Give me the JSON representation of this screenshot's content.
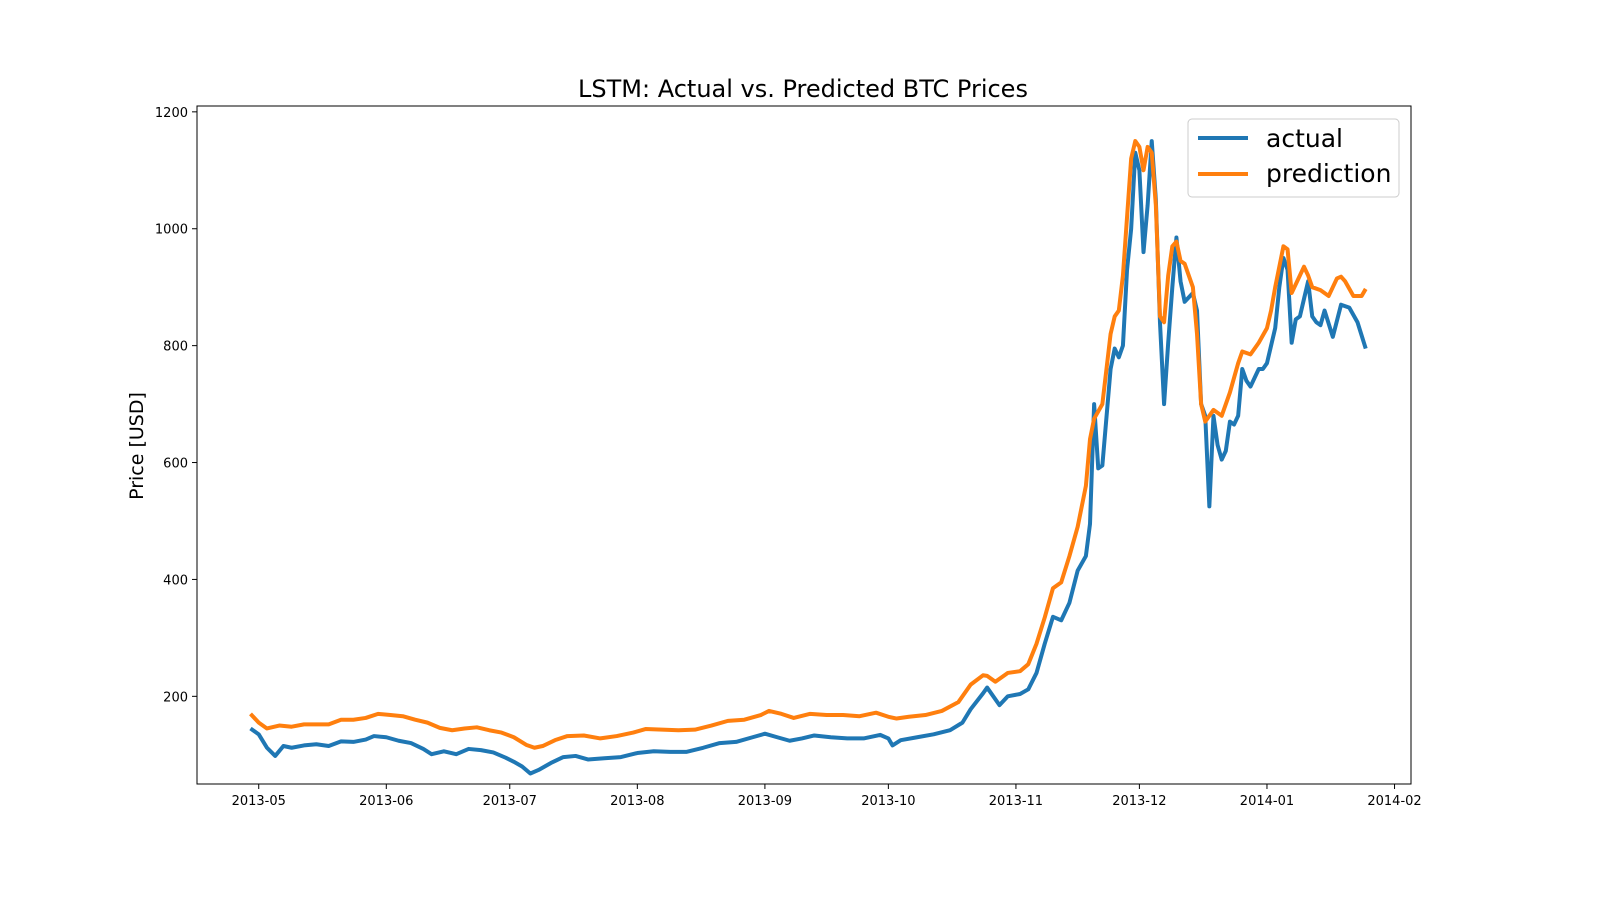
{
  "chart_data": {
    "type": "line",
    "title": "LSTM: Actual vs. Predicted BTC Prices",
    "xlabel": "",
    "ylabel": "Price [USD]",
    "ylim": [
      50,
      1210
    ],
    "xlim": [
      "2013-04-16",
      "2014-02-05"
    ],
    "x_tick_labels": [
      "2013-05",
      "2013-06",
      "2013-07",
      "2013-08",
      "2013-09",
      "2013-10",
      "2013-11",
      "2013-12",
      "2014-01",
      "2014-02"
    ],
    "y_tick_labels": [
      "200",
      "400",
      "600",
      "800",
      "1000",
      "1200"
    ],
    "grid": false,
    "legend_position": "top-right",
    "series": [
      {
        "name": "actual",
        "color": "#1f77b4",
        "points": [
          [
            "2013-04-29",
            145
          ],
          [
            "2013-05-01",
            135
          ],
          [
            "2013-05-03",
            112
          ],
          [
            "2013-05-05",
            98
          ],
          [
            "2013-05-07",
            115
          ],
          [
            "2013-05-09",
            112
          ],
          [
            "2013-05-12",
            116
          ],
          [
            "2013-05-15",
            118
          ],
          [
            "2013-05-18",
            115
          ],
          [
            "2013-05-21",
            123
          ],
          [
            "2013-05-24",
            122
          ],
          [
            "2013-05-27",
            126
          ],
          [
            "2013-05-29",
            132
          ],
          [
            "2013-06-01",
            130
          ],
          [
            "2013-06-04",
            124
          ],
          [
            "2013-06-07",
            120
          ],
          [
            "2013-06-10",
            110
          ],
          [
            "2013-06-12",
            101
          ],
          [
            "2013-06-15",
            106
          ],
          [
            "2013-06-18",
            101
          ],
          [
            "2013-06-21",
            110
          ],
          [
            "2013-06-24",
            108
          ],
          [
            "2013-06-27",
            104
          ],
          [
            "2013-06-30",
            95
          ],
          [
            "2013-07-02",
            88
          ],
          [
            "2013-07-04",
            80
          ],
          [
            "2013-07-06",
            68
          ],
          [
            "2013-07-08",
            74
          ],
          [
            "2013-07-11",
            86
          ],
          [
            "2013-07-14",
            96
          ],
          [
            "2013-07-17",
            98
          ],
          [
            "2013-07-20",
            92
          ],
          [
            "2013-07-24",
            94
          ],
          [
            "2013-07-28",
            96
          ],
          [
            "2013-08-01",
            103
          ],
          [
            "2013-08-05",
            106
          ],
          [
            "2013-08-09",
            105
          ],
          [
            "2013-08-13",
            105
          ],
          [
            "2013-08-17",
            112
          ],
          [
            "2013-08-21",
            120
          ],
          [
            "2013-08-25",
            122
          ],
          [
            "2013-08-29",
            130
          ],
          [
            "2013-09-01",
            136
          ],
          [
            "2013-09-04",
            130
          ],
          [
            "2013-09-07",
            124
          ],
          [
            "2013-09-10",
            128
          ],
          [
            "2013-09-13",
            133
          ],
          [
            "2013-09-17",
            130
          ],
          [
            "2013-09-21",
            128
          ],
          [
            "2013-09-25",
            128
          ],
          [
            "2013-09-29",
            134
          ],
          [
            "2013-10-01",
            128
          ],
          [
            "2013-10-02",
            116
          ],
          [
            "2013-10-04",
            125
          ],
          [
            "2013-10-08",
            130
          ],
          [
            "2013-10-12",
            135
          ],
          [
            "2013-10-16",
            142
          ],
          [
            "2013-10-19",
            155
          ],
          [
            "2013-10-21",
            178
          ],
          [
            "2013-10-24",
            205
          ],
          [
            "2013-10-25",
            215
          ],
          [
            "2013-10-28",
            185
          ],
          [
            "2013-10-30",
            200
          ],
          [
            "2013-11-02",
            204
          ],
          [
            "2013-11-04",
            212
          ],
          [
            "2013-11-06",
            240
          ],
          [
            "2013-11-08",
            290
          ],
          [
            "2013-11-10",
            336
          ],
          [
            "2013-11-12",
            330
          ],
          [
            "2013-11-14",
            360
          ],
          [
            "2013-11-16",
            415
          ],
          [
            "2013-11-18",
            440
          ],
          [
            "2013-11-19",
            495
          ],
          [
            "2013-11-20",
            700
          ],
          [
            "2013-11-21",
            590
          ],
          [
            "2013-11-22",
            595
          ],
          [
            "2013-11-24",
            760
          ],
          [
            "2013-11-25",
            795
          ],
          [
            "2013-11-26",
            780
          ],
          [
            "2013-11-27",
            800
          ],
          [
            "2013-11-28",
            930
          ],
          [
            "2013-11-29",
            1000
          ],
          [
            "2013-11-30",
            1130
          ],
          [
            "2013-12-01",
            1100
          ],
          [
            "2013-12-02",
            960
          ],
          [
            "2013-12-03",
            1040
          ],
          [
            "2013-12-04",
            1150
          ],
          [
            "2013-12-05",
            1050
          ],
          [
            "2013-12-06",
            840
          ],
          [
            "2013-12-07",
            700
          ],
          [
            "2013-12-08",
            805
          ],
          [
            "2013-12-09",
            900
          ],
          [
            "2013-12-10",
            985
          ],
          [
            "2013-12-11",
            910
          ],
          [
            "2013-12-12",
            875
          ],
          [
            "2013-12-14",
            890
          ],
          [
            "2013-12-15",
            860
          ],
          [
            "2013-12-16",
            700
          ],
          [
            "2013-12-17",
            680
          ],
          [
            "2013-12-18",
            525
          ],
          [
            "2013-12-19",
            680
          ],
          [
            "2013-12-20",
            630
          ],
          [
            "2013-12-21",
            605
          ],
          [
            "2013-12-22",
            620
          ],
          [
            "2013-12-23",
            670
          ],
          [
            "2013-12-24",
            665
          ],
          [
            "2013-12-25",
            680
          ],
          [
            "2013-12-26",
            760
          ],
          [
            "2013-12-27",
            740
          ],
          [
            "2013-12-28",
            730
          ],
          [
            "2013-12-29",
            745
          ],
          [
            "2013-12-30",
            760
          ],
          [
            "2013-12-31",
            760
          ],
          [
            "2014-01-01",
            770
          ],
          [
            "2014-01-02",
            800
          ],
          [
            "2014-01-03",
            830
          ],
          [
            "2014-01-04",
            900
          ],
          [
            "2014-01-05",
            950
          ],
          [
            "2014-01-06",
            930
          ],
          [
            "2014-01-07",
            805
          ],
          [
            "2014-01-08",
            845
          ],
          [
            "2014-01-09",
            850
          ],
          [
            "2014-01-10",
            880
          ],
          [
            "2014-01-11",
            910
          ],
          [
            "2014-01-12",
            850
          ],
          [
            "2014-01-13",
            840
          ],
          [
            "2014-01-14",
            835
          ],
          [
            "2014-01-15",
            860
          ],
          [
            "2014-01-17",
            815
          ],
          [
            "2014-01-19",
            870
          ],
          [
            "2014-01-21",
            865
          ],
          [
            "2014-01-23",
            840
          ],
          [
            "2014-01-25",
            795
          ]
        ]
      },
      {
        "name": "prediction",
        "color": "#ff7f0e",
        "points": [
          [
            "2013-04-29",
            170
          ],
          [
            "2013-05-01",
            155
          ],
          [
            "2013-05-03",
            145
          ],
          [
            "2013-05-06",
            150
          ],
          [
            "2013-05-09",
            148
          ],
          [
            "2013-05-12",
            152
          ],
          [
            "2013-05-15",
            152
          ],
          [
            "2013-05-18",
            152
          ],
          [
            "2013-05-21",
            160
          ],
          [
            "2013-05-24",
            160
          ],
          [
            "2013-05-27",
            163
          ],
          [
            "2013-05-30",
            170
          ],
          [
            "2013-06-02",
            168
          ],
          [
            "2013-06-05",
            166
          ],
          [
            "2013-06-08",
            160
          ],
          [
            "2013-06-11",
            155
          ],
          [
            "2013-06-14",
            146
          ],
          [
            "2013-06-17",
            142
          ],
          [
            "2013-06-20",
            145
          ],
          [
            "2013-06-23",
            147
          ],
          [
            "2013-06-26",
            142
          ],
          [
            "2013-06-29",
            138
          ],
          [
            "2013-07-02",
            130
          ],
          [
            "2013-07-05",
            117
          ],
          [
            "2013-07-07",
            112
          ],
          [
            "2013-07-09",
            115
          ],
          [
            "2013-07-12",
            125
          ],
          [
            "2013-07-15",
            132
          ],
          [
            "2013-07-19",
            133
          ],
          [
            "2013-07-23",
            128
          ],
          [
            "2013-07-27",
            132
          ],
          [
            "2013-07-31",
            138
          ],
          [
            "2013-08-03",
            144
          ],
          [
            "2013-08-07",
            143
          ],
          [
            "2013-08-11",
            142
          ],
          [
            "2013-08-15",
            143
          ],
          [
            "2013-08-19",
            150
          ],
          [
            "2013-08-23",
            158
          ],
          [
            "2013-08-27",
            160
          ],
          [
            "2013-08-31",
            168
          ],
          [
            "2013-09-02",
            175
          ],
          [
            "2013-09-05",
            170
          ],
          [
            "2013-09-08",
            163
          ],
          [
            "2013-09-12",
            170
          ],
          [
            "2013-09-16",
            168
          ],
          [
            "2013-09-20",
            168
          ],
          [
            "2013-09-24",
            166
          ],
          [
            "2013-09-28",
            172
          ],
          [
            "2013-10-01",
            165
          ],
          [
            "2013-10-03",
            162
          ],
          [
            "2013-10-06",
            165
          ],
          [
            "2013-10-10",
            168
          ],
          [
            "2013-10-14",
            175
          ],
          [
            "2013-10-18",
            190
          ],
          [
            "2013-10-21",
            220
          ],
          [
            "2013-10-24",
            236
          ],
          [
            "2013-10-25",
            235
          ],
          [
            "2013-10-27",
            225
          ],
          [
            "2013-10-30",
            240
          ],
          [
            "2013-11-02",
            243
          ],
          [
            "2013-11-04",
            255
          ],
          [
            "2013-11-06",
            290
          ],
          [
            "2013-11-08",
            335
          ],
          [
            "2013-11-10",
            385
          ],
          [
            "2013-11-12",
            395
          ],
          [
            "2013-11-14",
            440
          ],
          [
            "2013-11-16",
            490
          ],
          [
            "2013-11-18",
            560
          ],
          [
            "2013-11-19",
            640
          ],
          [
            "2013-11-20",
            675
          ],
          [
            "2013-11-22",
            700
          ],
          [
            "2013-11-24",
            820
          ],
          [
            "2013-11-25",
            850
          ],
          [
            "2013-11-26",
            860
          ],
          [
            "2013-11-27",
            920
          ],
          [
            "2013-11-28",
            1020
          ],
          [
            "2013-11-29",
            1120
          ],
          [
            "2013-11-30",
            1150
          ],
          [
            "2013-12-01",
            1140
          ],
          [
            "2013-12-02",
            1100
          ],
          [
            "2013-12-03",
            1140
          ],
          [
            "2013-12-04",
            1130
          ],
          [
            "2013-12-05",
            1040
          ],
          [
            "2013-12-06",
            850
          ],
          [
            "2013-12-07",
            840
          ],
          [
            "2013-12-08",
            920
          ],
          [
            "2013-12-09",
            970
          ],
          [
            "2013-12-10",
            978
          ],
          [
            "2013-12-11",
            945
          ],
          [
            "2013-12-12",
            940
          ],
          [
            "2013-12-14",
            900
          ],
          [
            "2013-12-15",
            820
          ],
          [
            "2013-12-16",
            700
          ],
          [
            "2013-12-17",
            670
          ],
          [
            "2013-12-19",
            690
          ],
          [
            "2013-12-21",
            680
          ],
          [
            "2013-12-23",
            720
          ],
          [
            "2013-12-25",
            770
          ],
          [
            "2013-12-26",
            790
          ],
          [
            "2013-12-28",
            785
          ],
          [
            "2013-12-30",
            805
          ],
          [
            "2014-01-01",
            830
          ],
          [
            "2014-01-02",
            860
          ],
          [
            "2014-01-03",
            900
          ],
          [
            "2014-01-04",
            935
          ],
          [
            "2014-01-05",
            970
          ],
          [
            "2014-01-06",
            965
          ],
          [
            "2014-01-07",
            890
          ],
          [
            "2014-01-09",
            920
          ],
          [
            "2014-01-10",
            935
          ],
          [
            "2014-01-11",
            920
          ],
          [
            "2014-01-12",
            900
          ],
          [
            "2014-01-14",
            895
          ],
          [
            "2014-01-16",
            885
          ],
          [
            "2014-01-17",
            900
          ],
          [
            "2014-01-18",
            915
          ],
          [
            "2014-01-19",
            918
          ],
          [
            "2014-01-20",
            910
          ],
          [
            "2014-01-22",
            885
          ],
          [
            "2014-01-24",
            885
          ],
          [
            "2014-01-25",
            897
          ]
        ]
      }
    ]
  }
}
